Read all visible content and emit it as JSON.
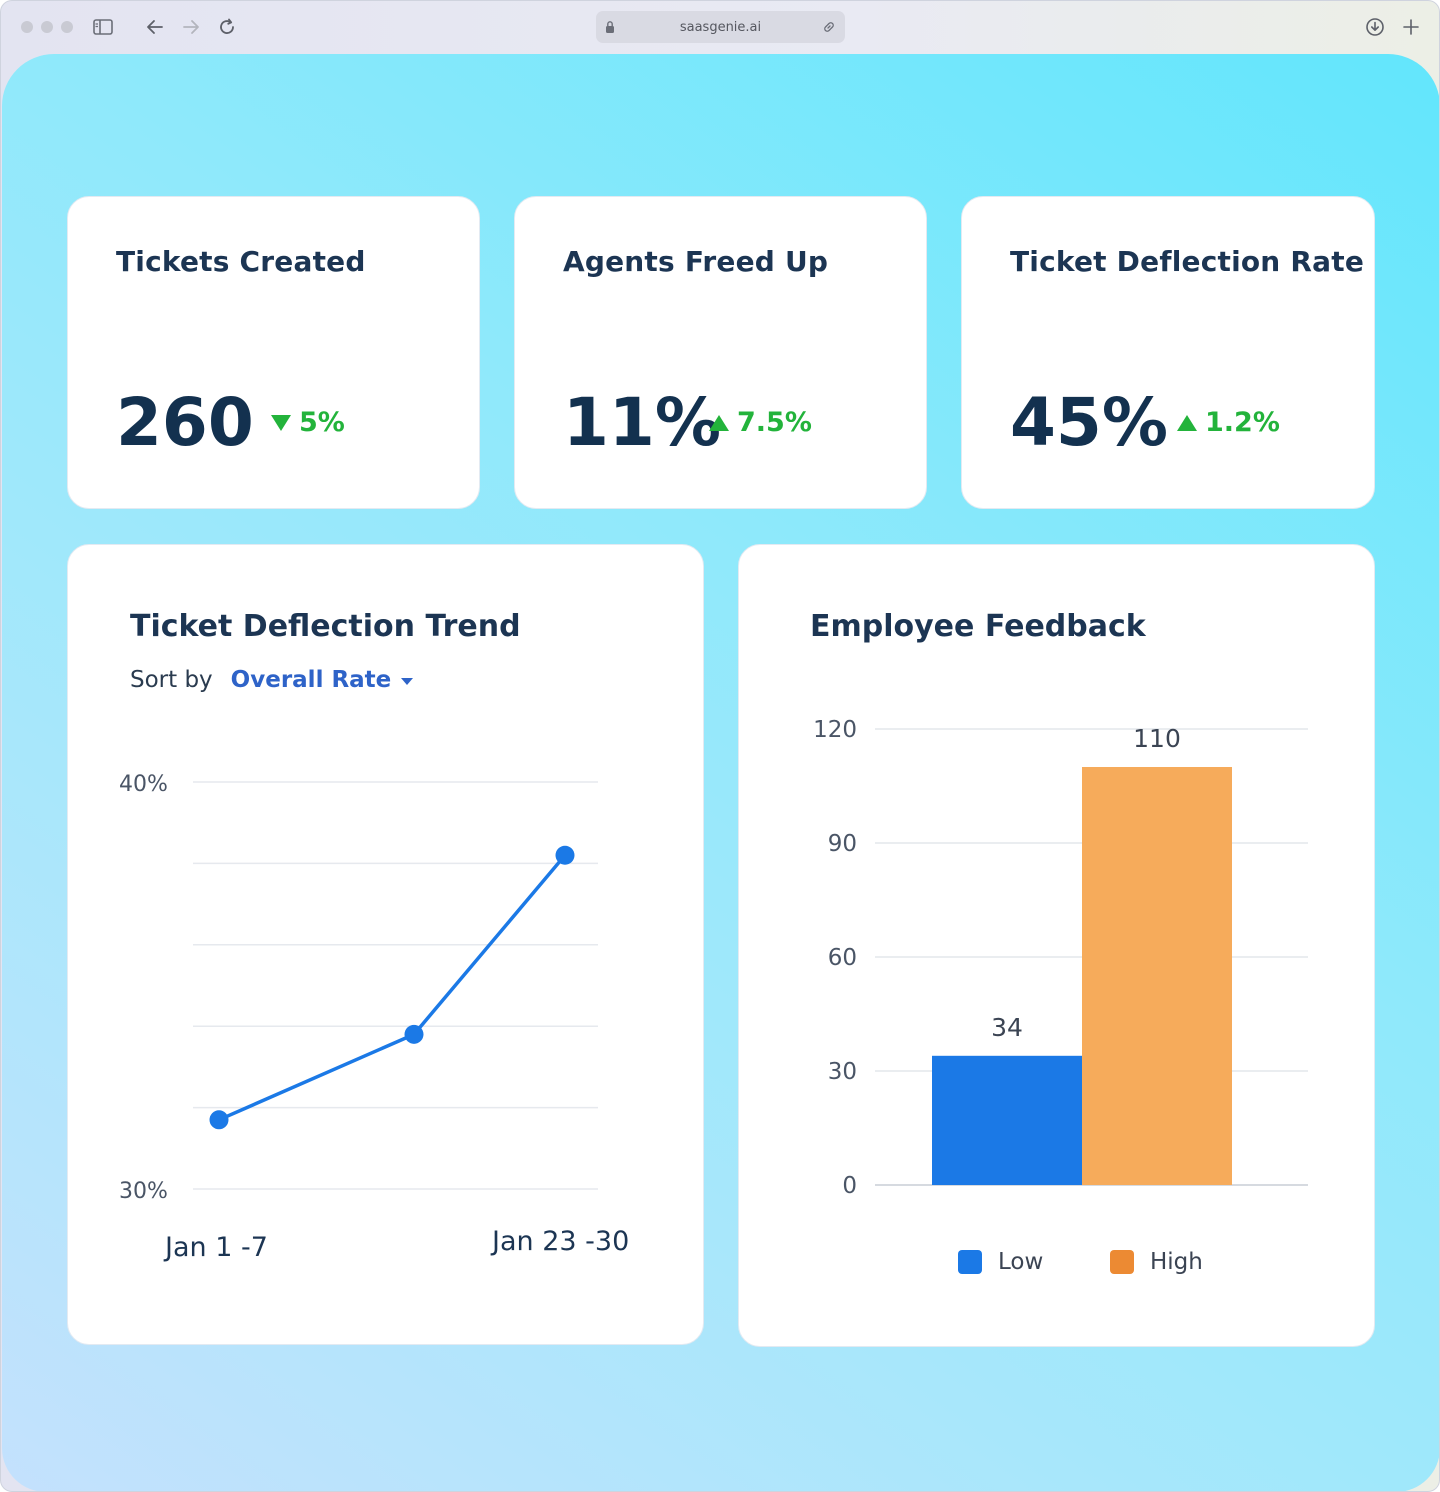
{
  "browser": {
    "url": "saasgenie.ai",
    "icons": [
      "sidebar-icon",
      "back-icon",
      "forward-icon",
      "reload-icon",
      "lock-icon",
      "link-icon",
      "download-icon",
      "new-tab-icon"
    ]
  },
  "kpis": [
    {
      "title": "Tickets Created",
      "value": "260",
      "delta": "5%",
      "direction": "down"
    },
    {
      "title": "Agents Freed Up",
      "value": "11%",
      "delta": "7.5%",
      "direction": "up"
    },
    {
      "title": "Ticket Deflection Rate",
      "value": "45%",
      "delta": "1.2%",
      "direction": "up"
    }
  ],
  "trend": {
    "title": "Ticket Deflection Trend",
    "sort_label": "Sort by",
    "sort_value": "Overall Rate"
  },
  "feedback": {
    "title": "Employee Feedback"
  },
  "colors": {
    "delta_green": "#23b33b",
    "line_blue": "#1b79e6",
    "bar_low": "#1b79e6",
    "bar_high": "#f6ab5b",
    "legend_high": "#ec8a33",
    "title": "#1c3553"
  },
  "chart_data": [
    {
      "type": "line",
      "title": "Ticket Deflection Trend",
      "y_tick_labels": [
        "40%",
        "30%"
      ],
      "ylim": [
        30,
        40
      ],
      "x_labels": [
        "Jan 1 -7",
        "Jan 23 -30"
      ],
      "series": [
        {
          "values": [
            31.7,
            33.8,
            38.2
          ]
        }
      ],
      "grid": true
    },
    {
      "type": "bar",
      "title": "Employee Feedback",
      "categories": [
        "Low",
        "High"
      ],
      "values": [
        34,
        110
      ],
      "data_labels": [
        "34",
        "110"
      ],
      "y_ticks": [
        0,
        30,
        60,
        90,
        120
      ],
      "ylim": [
        0,
        120
      ],
      "legend": [
        "Low",
        "High"
      ],
      "legend_position": "bottom",
      "grid": true
    }
  ]
}
